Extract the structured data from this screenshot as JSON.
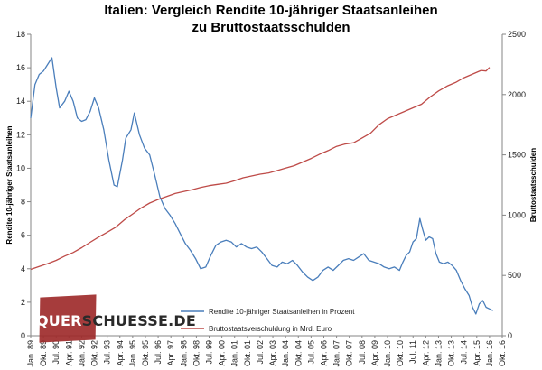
{
  "title": {
    "line1": "Italien: Vergleich Rendite 10-jähriger Staatsanleihen",
    "line2": "zu Bruttostaatsschulden"
  },
  "watermark": {
    "text_part1": "QUER",
    "text_part2": "SCHUESSE.DE"
  },
  "colors": {
    "rendite": "#4a7ebb",
    "schulden": "#be4b48",
    "axis": "#868686",
    "logo": "#9e2b2b"
  },
  "chart_data": {
    "type": "line",
    "title": "Italien: Vergleich Rendite 10-jähriger Staatsanleihen zu Bruttostaatsschulden",
    "x_axis": {
      "min": 1989.0,
      "max": 2016.75,
      "tick_labels": [
        "Jan. 89",
        "Okt. 89",
        "Jul. 90",
        "Apr. 91",
        "Jan. 92",
        "Okt. 92",
        "Jul. 93",
        "Apr. 94",
        "Jan. 95",
        "Okt. 95",
        "Jul. 96",
        "Apr. 97",
        "Jan. 98",
        "Okt. 98",
        "Jul. 99",
        "Apr. 00",
        "Jan. 01",
        "Okt. 01",
        "Jul. 02",
        "Apr. 03",
        "Jan. 04",
        "Okt. 04",
        "Jul. 05",
        "Apr. 06",
        "Jan. 07",
        "Okt. 07",
        "Jul. 08",
        "Apr. 09",
        "Jan. 10",
        "Okt. 10",
        "Jul. 11",
        "Apr. 12",
        "Jan. 13",
        "Okt. 13",
        "Jul. 14",
        "Apr. 15",
        "Jan. 16",
        "Okt. 16"
      ]
    },
    "y_left": {
      "label": "Rendite  10-jähriger Staatsanleihen",
      "min": 0,
      "max": 18,
      "ticks": [
        0,
        2,
        4,
        6,
        8,
        10,
        12,
        14,
        16,
        18
      ]
    },
    "y_right": {
      "label": "Bruttostaatsschulden",
      "min": 0,
      "max": 2500,
      "ticks": [
        0,
        500,
        1000,
        1500,
        2000,
        2500
      ]
    },
    "legend_position": "bottom-left",
    "series": [
      {
        "name": "Rendite 10-jähriger Staatsanleihen in Prozent",
        "axis": "left",
        "points": [
          [
            1989.0,
            13.0
          ],
          [
            1989.25,
            15.0
          ],
          [
            1989.5,
            15.6
          ],
          [
            1989.75,
            15.8
          ],
          [
            1990.0,
            16.2
          ],
          [
            1990.25,
            16.6
          ],
          [
            1990.5,
            14.8
          ],
          [
            1990.7,
            13.6
          ],
          [
            1991.0,
            14.0
          ],
          [
            1991.25,
            14.6
          ],
          [
            1991.5,
            14.0
          ],
          [
            1991.75,
            13.0
          ],
          [
            1992.0,
            12.8
          ],
          [
            1992.25,
            12.9
          ],
          [
            1992.5,
            13.4
          ],
          [
            1992.75,
            14.2
          ],
          [
            1993.0,
            13.6
          ],
          [
            1993.3,
            12.3
          ],
          [
            1993.6,
            10.5
          ],
          [
            1993.9,
            9.0
          ],
          [
            1994.1,
            8.9
          ],
          [
            1994.4,
            10.5
          ],
          [
            1994.6,
            11.8
          ],
          [
            1994.9,
            12.3
          ],
          [
            1995.1,
            13.3
          ],
          [
            1995.4,
            12.0
          ],
          [
            1995.7,
            11.2
          ],
          [
            1996.0,
            10.8
          ],
          [
            1996.3,
            9.6
          ],
          [
            1996.6,
            8.3
          ],
          [
            1996.9,
            7.6
          ],
          [
            1997.2,
            7.2
          ],
          [
            1997.5,
            6.7
          ],
          [
            1997.8,
            6.1
          ],
          [
            1998.1,
            5.5
          ],
          [
            1998.4,
            5.1
          ],
          [
            1998.7,
            4.6
          ],
          [
            1999.0,
            4.0
          ],
          [
            1999.3,
            4.1
          ],
          [
            1999.6,
            4.8
          ],
          [
            1999.9,
            5.4
          ],
          [
            2000.2,
            5.6
          ],
          [
            2000.5,
            5.7
          ],
          [
            2000.8,
            5.6
          ],
          [
            2001.1,
            5.3
          ],
          [
            2001.4,
            5.5
          ],
          [
            2001.7,
            5.3
          ],
          [
            2002.0,
            5.2
          ],
          [
            2002.3,
            5.3
          ],
          [
            2002.6,
            5.0
          ],
          [
            2002.9,
            4.6
          ],
          [
            2003.2,
            4.2
          ],
          [
            2003.5,
            4.1
          ],
          [
            2003.8,
            4.4
          ],
          [
            2004.1,
            4.3
          ],
          [
            2004.4,
            4.5
          ],
          [
            2004.7,
            4.2
          ],
          [
            2005.0,
            3.8
          ],
          [
            2005.3,
            3.5
          ],
          [
            2005.6,
            3.3
          ],
          [
            2005.9,
            3.5
          ],
          [
            2006.2,
            3.9
          ],
          [
            2006.5,
            4.1
          ],
          [
            2006.8,
            3.9
          ],
          [
            2007.1,
            4.2
          ],
          [
            2007.4,
            4.5
          ],
          [
            2007.7,
            4.6
          ],
          [
            2008.0,
            4.5
          ],
          [
            2008.3,
            4.7
          ],
          [
            2008.6,
            4.9
          ],
          [
            2008.9,
            4.5
          ],
          [
            2009.2,
            4.4
          ],
          [
            2009.5,
            4.3
          ],
          [
            2009.8,
            4.1
          ],
          [
            2010.1,
            4.0
          ],
          [
            2010.4,
            4.1
          ],
          [
            2010.7,
            3.9
          ],
          [
            2010.9,
            4.4
          ],
          [
            2011.1,
            4.8
          ],
          [
            2011.3,
            5.0
          ],
          [
            2011.5,
            5.6
          ],
          [
            2011.7,
            5.8
          ],
          [
            2011.9,
            7.0
          ],
          [
            2012.05,
            6.4
          ],
          [
            2012.25,
            5.7
          ],
          [
            2012.45,
            5.9
          ],
          [
            2012.65,
            5.8
          ],
          [
            2012.85,
            4.9
          ],
          [
            2013.05,
            4.4
          ],
          [
            2013.3,
            4.3
          ],
          [
            2013.55,
            4.4
          ],
          [
            2013.8,
            4.2
          ],
          [
            2014.05,
            3.9
          ],
          [
            2014.3,
            3.3
          ],
          [
            2014.55,
            2.8
          ],
          [
            2014.8,
            2.4
          ],
          [
            2015.0,
            1.7
          ],
          [
            2015.2,
            1.3
          ],
          [
            2015.4,
            1.9
          ],
          [
            2015.6,
            2.1
          ],
          [
            2015.8,
            1.7
          ],
          [
            2016.0,
            1.6
          ],
          [
            2016.2,
            1.5
          ]
        ]
      },
      {
        "name": "Bruttostaatsverschuldung in Mrd. Euro",
        "axis": "right",
        "points": [
          [
            1989.0,
            550
          ],
          [
            1989.5,
            575
          ],
          [
            1990.0,
            598
          ],
          [
            1990.5,
            625
          ],
          [
            1991.0,
            660
          ],
          [
            1991.5,
            690
          ],
          [
            1992.0,
            730
          ],
          [
            1992.5,
            775
          ],
          [
            1993.0,
            818
          ],
          [
            1993.5,
            858
          ],
          [
            1994.0,
            900
          ],
          [
            1994.5,
            960
          ],
          [
            1995.0,
            1010
          ],
          [
            1995.5,
            1060
          ],
          [
            1996.0,
            1100
          ],
          [
            1996.5,
            1130
          ],
          [
            1997.0,
            1155
          ],
          [
            1997.5,
            1180
          ],
          [
            1998.0,
            1195
          ],
          [
            1998.5,
            1210
          ],
          [
            1999.0,
            1230
          ],
          [
            1999.5,
            1245
          ],
          [
            2000.0,
            1255
          ],
          [
            2000.5,
            1265
          ],
          [
            2001.0,
            1285
          ],
          [
            2001.5,
            1310
          ],
          [
            2002.0,
            1325
          ],
          [
            2002.5,
            1340
          ],
          [
            2003.0,
            1350
          ],
          [
            2003.5,
            1370
          ],
          [
            2004.0,
            1390
          ],
          [
            2004.5,
            1410
          ],
          [
            2005.0,
            1440
          ],
          [
            2005.5,
            1470
          ],
          [
            2006.0,
            1505
          ],
          [
            2006.5,
            1535
          ],
          [
            2007.0,
            1570
          ],
          [
            2007.5,
            1590
          ],
          [
            2008.0,
            1600
          ],
          [
            2008.5,
            1640
          ],
          [
            2009.0,
            1680
          ],
          [
            2009.5,
            1750
          ],
          [
            2010.0,
            1800
          ],
          [
            2010.5,
            1830
          ],
          [
            2011.0,
            1860
          ],
          [
            2011.5,
            1890
          ],
          [
            2012.0,
            1920
          ],
          [
            2012.5,
            1980
          ],
          [
            2013.0,
            2030
          ],
          [
            2013.5,
            2070
          ],
          [
            2014.0,
            2100
          ],
          [
            2014.5,
            2140
          ],
          [
            2015.0,
            2170
          ],
          [
            2015.5,
            2200
          ],
          [
            2015.8,
            2195
          ],
          [
            2016.0,
            2225
          ]
        ]
      }
    ]
  }
}
